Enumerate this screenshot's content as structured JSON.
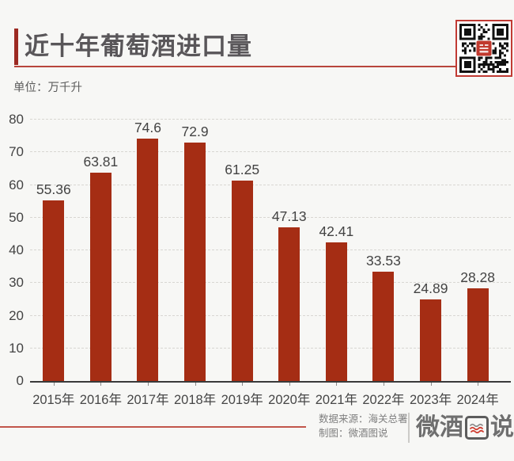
{
  "header": {
    "title": "近十年葡萄酒进口量",
    "unit_label": "单位：万千升"
  },
  "chart_data": {
    "type": "bar",
    "title": "近十年葡萄酒进口量",
    "categories": [
      "2015年",
      "2016年",
      "2017年",
      "2018年",
      "2019年",
      "2020年",
      "2021年",
      "2022年",
      "2023年",
      "2024年"
    ],
    "values": [
      55.36,
      63.81,
      74.6,
      72.9,
      61.25,
      47.13,
      42.41,
      33.53,
      24.89,
      28.28
    ],
    "xlabel": "",
    "ylabel": "单位：万千升",
    "ylim": [
      0,
      80
    ],
    "yticks": [
      0,
      10,
      20,
      30,
      40,
      50,
      60,
      70,
      80
    ],
    "grid": true,
    "legend": "none",
    "bar_color": "#a52d14"
  },
  "footer": {
    "source_label": "数据来源：海关总署",
    "credit_label": "制图：微酒图说",
    "logo_left": "微酒",
    "logo_right": "说",
    "logo_full_name": "微酒图说"
  },
  "icons": {
    "qr_code": "qr-code",
    "logo_wave": "wave-lines"
  },
  "colors": {
    "background": "#f7f7f5",
    "bar": "#a52d14",
    "accent_bar": "#9c2a22",
    "header_rule": "#b8453c",
    "footer_rule": "#c2564b",
    "qr_border": "#c13b34",
    "axis": "#3a3a3a",
    "title_text": "#595659",
    "label_text": "#434343"
  }
}
